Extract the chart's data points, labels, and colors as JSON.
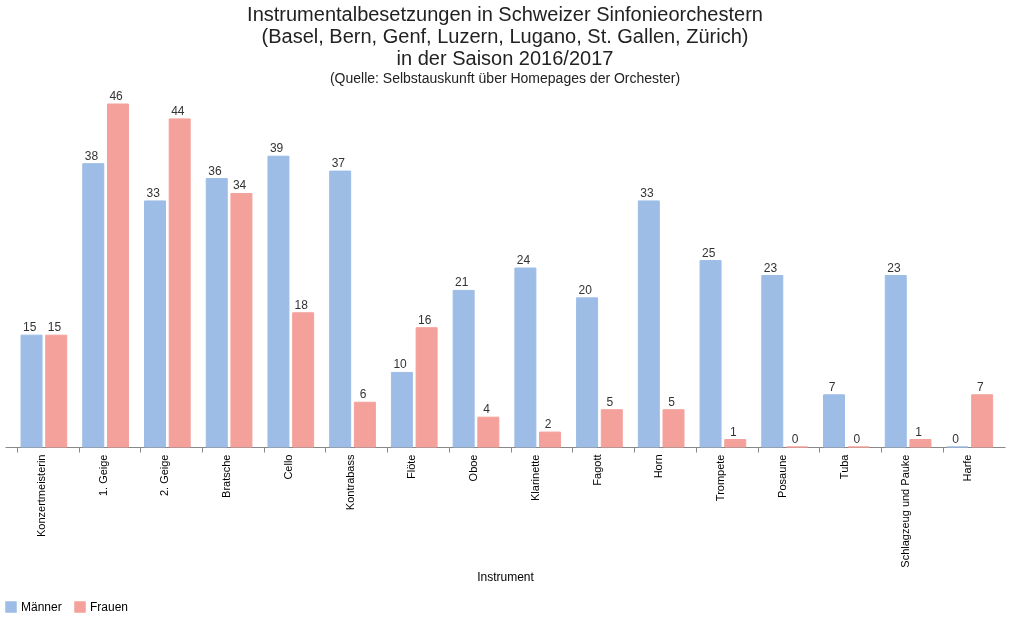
{
  "chart_data": {
    "type": "bar",
    "title": [
      "Instrumentalbesetzungen in Schweizer Sinfonieorchestern",
      "(Basel, Bern, Genf, Luzern, Lugano, St. Gallen, Zürich)",
      "in der Saison 2016/2017"
    ],
    "subtitle": "(Quelle: Selbstauskunft über Homepages der Orchester)",
    "xlabel": "Instrument",
    "categories": [
      "Konzertmeisterin",
      "1. Geige",
      "2. Geige",
      "Bratsche",
      "Cello",
      "Kontrabass",
      "Flöte",
      "Oboe",
      "Klarinette",
      "Fagott",
      "Horn",
      "Trompete",
      "Posaune",
      "Tuba",
      "Schlagzeug und Pauke",
      "Harfe"
    ],
    "series": [
      {
        "name": "Männer",
        "color": "#9dbde6",
        "values": [
          15,
          38,
          33,
          36,
          39,
          37,
          10,
          21,
          24,
          20,
          33,
          25,
          23,
          7,
          23,
          0
        ]
      },
      {
        "name": "Frauen",
        "color": "#f4a19b",
        "values": [
          15,
          46,
          44,
          34,
          18,
          6,
          16,
          4,
          2,
          5,
          5,
          1,
          0,
          0,
          1,
          7
        ]
      }
    ],
    "data_labels": true,
    "grid": false,
    "legend": "bottom",
    "tick_labels": "x"
  }
}
